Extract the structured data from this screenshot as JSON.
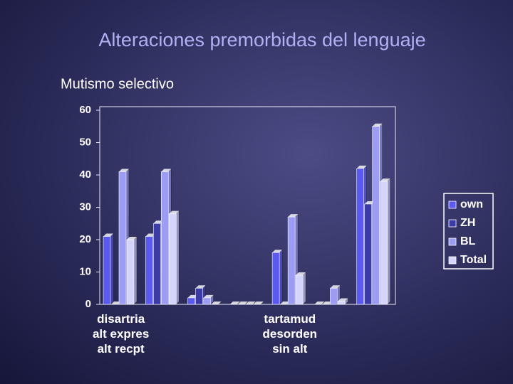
{
  "chart_data": {
    "type": "bar",
    "title": "Alteraciones premorbidas del lenguaje",
    "subtitle": "Mutismo selectivo",
    "categories": [
      "disartria\nalt expres\nalt recpt",
      null,
      null,
      null,
      "tartamud\ndesorden\nsin alt",
      null,
      null
    ],
    "series": [
      {
        "name": "own",
        "color": "#5a5af0",
        "values": [
          21,
          21,
          2,
          0,
          16,
          0,
          42
        ]
      },
      {
        "name": "ZH",
        "color": "#3c3ca8",
        "values": [
          0,
          25,
          5,
          0,
          0,
          0,
          31
        ]
      },
      {
        "name": "BL",
        "color": "#9c9cf4",
        "values": [
          41,
          41,
          2,
          0,
          27,
          5,
          55
        ]
      },
      {
        "name": "Total",
        "color": "#d4d4fc",
        "values": [
          20,
          28,
          0,
          0,
          9,
          1,
          38
        ]
      }
    ],
    "ylim": [
      0,
      60
    ],
    "yticks": [
      0,
      10,
      20,
      30,
      40,
      50,
      60
    ]
  }
}
